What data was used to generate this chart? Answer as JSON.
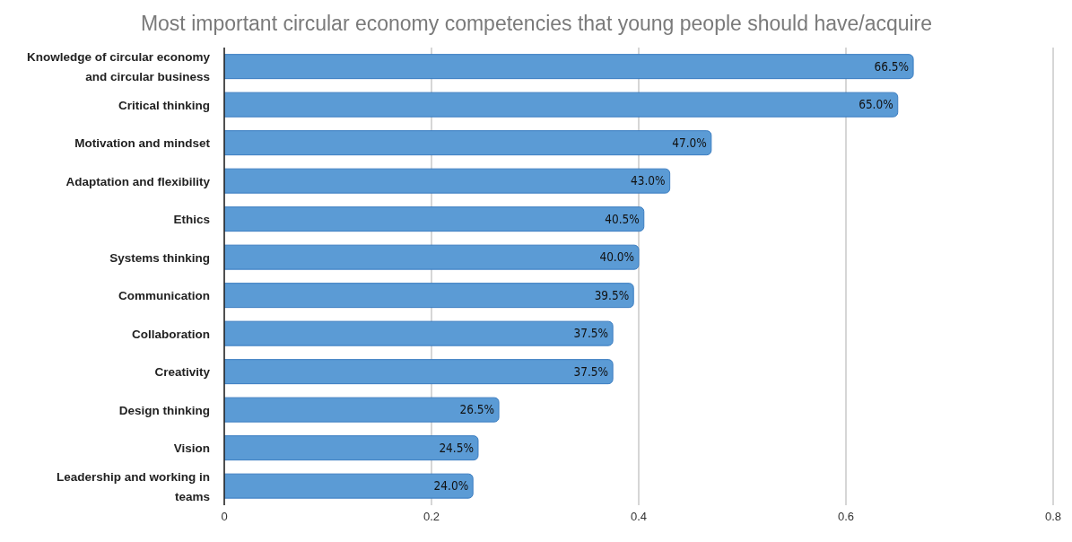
{
  "chart_data": {
    "type": "bar",
    "orientation": "horizontal",
    "title": "Most important circular economy competencies that young people should have/acquire",
    "categories": [
      "Knowledge of circular economy and circular business",
      "Critical thinking",
      "Motivation and mindset",
      "Adaptation and flexibility",
      "Ethics",
      "Systems thinking",
      "Communication",
      "Collaboration",
      "Creativity",
      "Design thinking",
      "Vision",
      "Leadership and working in teams"
    ],
    "values": [
      0.665,
      0.65,
      0.47,
      0.43,
      0.405,
      0.4,
      0.395,
      0.375,
      0.375,
      0.265,
      0.245,
      0.24
    ],
    "value_labels": [
      "66.5%",
      "65.0%",
      "47.0%",
      "43.0%",
      "40.5%",
      "40.0%",
      "39.5%",
      "37.5%",
      "37.5%",
      "26.5%",
      "24.5%",
      "24.0%"
    ],
    "color": "#5b9bd5",
    "xlim": [
      0,
      0.8
    ],
    "xticks": [
      0,
      0.2,
      0.4,
      0.6,
      0.8
    ],
    "grid": "x",
    "legend": false
  }
}
